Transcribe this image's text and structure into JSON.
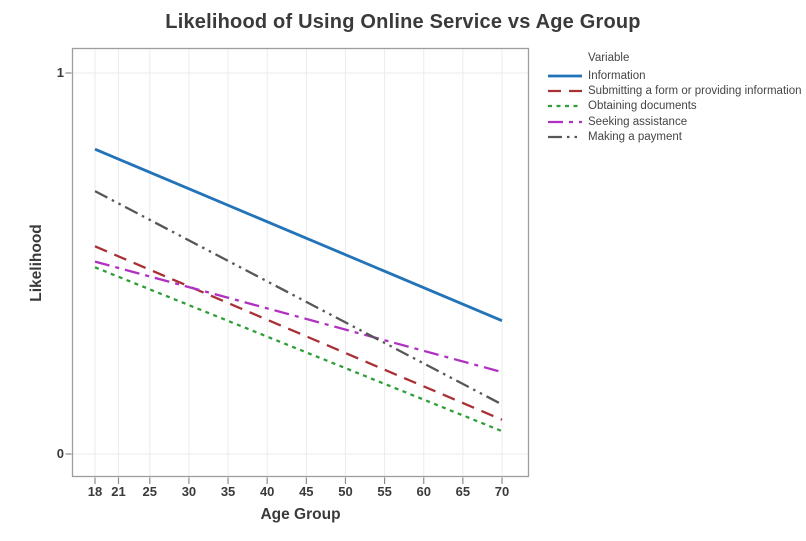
{
  "chart_data": {
    "type": "line",
    "title": "Likelihood of Using Online Service vs Age Group",
    "xlabel": "Age Group",
    "ylabel": "Likelihood",
    "legend_title": "Variable",
    "legend_position": "top-right",
    "xlim": [
      15,
      73.5
    ],
    "ylim": [
      0,
      1.06
    ],
    "x_ticks": [
      18,
      21,
      25,
      30,
      35,
      40,
      45,
      50,
      55,
      60,
      65,
      70
    ],
    "y_ticks": [
      0,
      1
    ],
    "grid": {
      "vertical_at_x_ticks": true,
      "horizontal_at_y_ticks": true
    },
    "x": [
      18,
      70
    ],
    "series": [
      {
        "name": "Information",
        "values": [
          0.8,
          0.35
        ],
        "color": "#2273b8",
        "linestyle": "solid",
        "stroke_width": 2.8
      },
      {
        "name": "Submitting a form or providing information",
        "values": [
          0.545,
          0.09
        ],
        "color": "#a93134",
        "linestyle": "dashed",
        "stroke_width": 2.3
      },
      {
        "name": "Obtaining documents",
        "values": [
          0.49,
          0.06
        ],
        "color": "#2f9e38",
        "linestyle": "dotted",
        "stroke_width": 2.3
      },
      {
        "name": "Seeking assistance",
        "values": [
          0.505,
          0.215
        ],
        "color": "#b031c1",
        "linestyle": "dash-dot",
        "stroke_width": 2.3
      },
      {
        "name": "Making a payment",
        "values": [
          0.69,
          0.13
        ],
        "color": "#575757",
        "linestyle": "dash-dot-dot",
        "stroke_width": 2.3
      }
    ],
    "frame_color": "#9e9e9e",
    "grid_color": "#ebebeb",
    "tick_color": "#8c8c8c"
  }
}
